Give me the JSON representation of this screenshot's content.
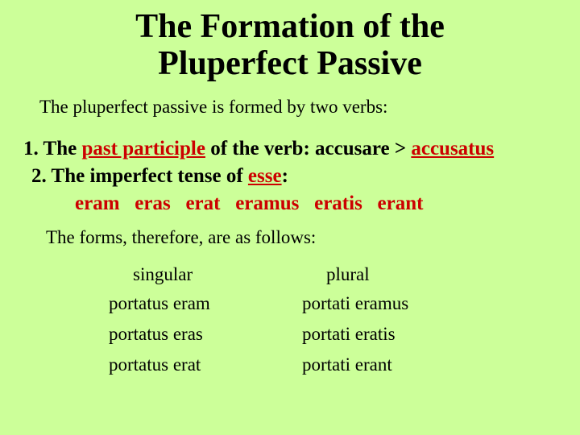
{
  "colors": {
    "background": "#ccff99",
    "text": "#000000",
    "accent": "#cc0000"
  },
  "title": {
    "line1": "The Formation of the",
    "line2": "Pluperfect Passive",
    "fontsize": 42
  },
  "intro": "The pluperfect passive is formed by two verbs:",
  "point1": {
    "prefix": "1. The ",
    "pp": "past participle",
    "mid": " of the verb: accusare > ",
    "acc": "accusatus"
  },
  "point2": {
    "prefix": "2. The imperfect tense of ",
    "esse": "esse",
    "colon": ":"
  },
  "forms_line": "eram   eras   erat   eramus   eratis   erant",
  "followup": "The forms, therefore, are as follows:",
  "table": {
    "singular_header": "singular",
    "plural_header": "plural",
    "singular": [
      "portatus eram",
      "portatus eras",
      "portatus erat"
    ],
    "plural": [
      "portati eramus",
      "portati eratis",
      "portati erant"
    ]
  },
  "fontsizes": {
    "body": 23,
    "points": 25
  }
}
